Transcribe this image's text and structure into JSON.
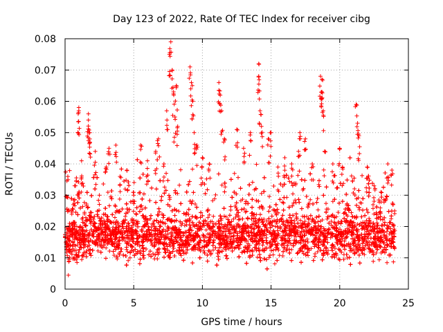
{
  "chart_data": {
    "type": "scatter",
    "title": "Day 123 of 2022, Rate Of TEC Index for receiver cibg",
    "xlabel": "GPS time / hours",
    "ylabel": "ROTI / TECUs",
    "xlim": [
      0,
      25
    ],
    "ylim": [
      0,
      0.08
    ],
    "xticks": [
      0,
      5,
      10,
      15,
      20,
      25
    ],
    "xtick_labels": [
      "0",
      "5",
      "10",
      "15",
      "20",
      "25"
    ],
    "yticks": [
      0,
      0.01,
      0.02,
      0.03,
      0.04,
      0.05,
      0.06,
      0.07,
      0.08
    ],
    "ytick_labels": [
      "0",
      "0.01",
      "0.02",
      "0.03",
      "0.04",
      "0.05",
      "0.06",
      "0.07",
      "0.08"
    ],
    "grid": true,
    "marker": "plus",
    "color": "#ff0000",
    "series": [
      {
        "values_summary": "dense band of points roughly 0.008 to 0.035 across 0-24 h",
        "points": [
          [
            0.1,
            0.018
          ],
          [
            0.2,
            0.036
          ],
          [
            0.3,
            0.012
          ],
          [
            0.5,
            0.025
          ],
          [
            0.7,
            0.033
          ],
          [
            1.0,
            0.058
          ],
          [
            1.0,
            0.057
          ],
          [
            1.2,
            0.041
          ],
          [
            1.5,
            0.022
          ],
          [
            1.7,
            0.056
          ],
          [
            1.7,
            0.054
          ],
          [
            1.8,
            0.05
          ],
          [
            1.8,
            0.047
          ],
          [
            2.2,
            0.044
          ],
          [
            2.5,
            0.03
          ],
          [
            3.0,
            0.039
          ],
          [
            3.2,
            0.045
          ],
          [
            3.7,
            0.046
          ],
          [
            4.0,
            0.036
          ],
          [
            4.5,
            0.038
          ],
          [
            5.0,
            0.03
          ],
          [
            5.5,
            0.046
          ],
          [
            6.0,
            0.041
          ],
          [
            6.6,
            0.044
          ],
          [
            6.8,
            0.048
          ],
          [
            7.2,
            0.04
          ],
          [
            7.4,
            0.057
          ],
          [
            7.6,
            0.075
          ],
          [
            7.7,
            0.079
          ],
          [
            7.8,
            0.07
          ],
          [
            7.9,
            0.063
          ],
          [
            8.0,
            0.055
          ],
          [
            8.1,
            0.065
          ],
          [
            8.2,
            0.052
          ],
          [
            9.1,
            0.071
          ],
          [
            9.2,
            0.066
          ],
          [
            9.3,
            0.06
          ],
          [
            9.4,
            0.05
          ],
          [
            9.6,
            0.046
          ],
          [
            10.0,
            0.042
          ],
          [
            10.5,
            0.04
          ],
          [
            11.2,
            0.066
          ],
          [
            11.3,
            0.062
          ],
          [
            11.4,
            0.057
          ],
          [
            11.6,
            0.048
          ],
          [
            12.5,
            0.051
          ],
          [
            13.0,
            0.045
          ],
          [
            13.5,
            0.05
          ],
          [
            14.1,
            0.072
          ],
          [
            14.1,
            0.068
          ],
          [
            14.2,
            0.057
          ],
          [
            14.3,
            0.052
          ],
          [
            14.8,
            0.048
          ],
          [
            15.0,
            0.05
          ],
          [
            15.5,
            0.039
          ],
          [
            16.0,
            0.042
          ],
          [
            16.5,
            0.04
          ],
          [
            17.0,
            0.044
          ],
          [
            17.1,
            0.05
          ],
          [
            17.5,
            0.048
          ],
          [
            18.0,
            0.04
          ],
          [
            18.6,
            0.068
          ],
          [
            18.7,
            0.067
          ],
          [
            18.7,
            0.063
          ],
          [
            18.8,
            0.057
          ],
          [
            18.9,
            0.044
          ],
          [
            19.5,
            0.04
          ],
          [
            20.0,
            0.045
          ],
          [
            20.2,
            0.039
          ],
          [
            21.2,
            0.059
          ],
          [
            21.3,
            0.053
          ],
          [
            21.4,
            0.049
          ],
          [
            22.0,
            0.039
          ],
          [
            22.5,
            0.033
          ],
          [
            23.0,
            0.031
          ],
          [
            23.5,
            0.04
          ],
          [
            23.8,
            0.038
          ],
          [
            24.0,
            0.025
          ]
        ]
      }
    ]
  }
}
